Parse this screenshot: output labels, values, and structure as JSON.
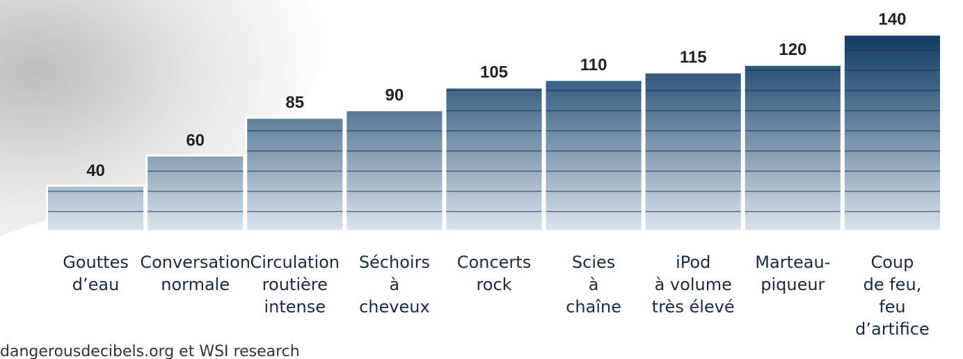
{
  "chart_data": {
    "type": "bar",
    "categories": [
      "Gouttes\nd’eau",
      "Conversation\nnormale",
      "Circulation\nroutière\nintense",
      "Séchoirs\nà\ncheveux",
      "Concerts\nrock",
      "Scies\nà\nchaîne",
      "iPod\nà volume\ntrès élevé",
      "Marteau-\npiqueur",
      "Coup\nde feu,\nfeu\nd’artifice"
    ],
    "values": [
      40,
      60,
      85,
      90,
      105,
      110,
      115,
      120,
      140
    ],
    "ylim": [
      10,
      150
    ],
    "color": "#1f4a72",
    "source": "dangerousdecibels.org et WSI research"
  }
}
